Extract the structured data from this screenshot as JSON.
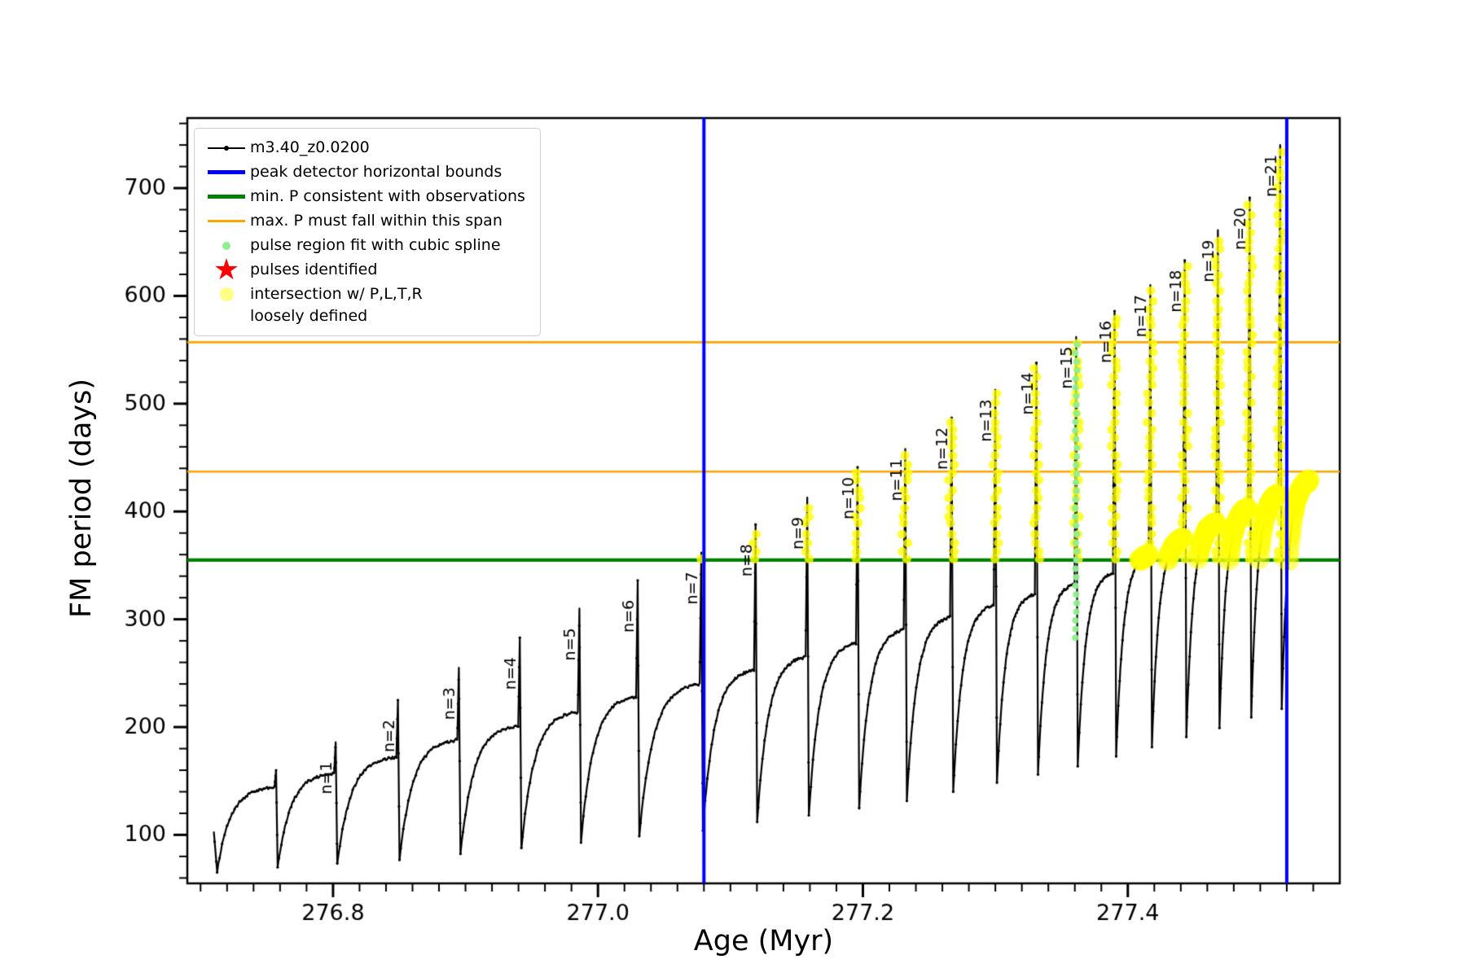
{
  "icons": {
    "pulse_star": "★"
  },
  "legend": {
    "items": [
      {
        "type": "line-marker",
        "icon": "series-line-icon",
        "color": "#000000",
        "label": "m3.40_z0.0200"
      },
      {
        "type": "thick-line",
        "icon": "blue-bound-line-icon",
        "color": "#0000ff",
        "label": "peak detector horizontal bounds"
      },
      {
        "type": "thick-line",
        "icon": "green-minP-line-icon",
        "color": "#008000",
        "label": "min. P consistent with observations"
      },
      {
        "type": "line",
        "icon": "orange-span-line-icon",
        "color": "#ffa500",
        "label": "max. P must fall within this span"
      },
      {
        "type": "dot-small",
        "icon": "spline-dot-icon",
        "color": "#90ee90",
        "label": "pulse region fit with cubic spline"
      },
      {
        "type": "star",
        "icon": "pulse-star-icon",
        "color": "#ff0000",
        "label": "pulses identified"
      },
      {
        "type": "dot-large",
        "icon": "intersection-dot-icon",
        "color": "rgba(255,255,102,0.8)",
        "label": "intersection w/ P,L,T,R\nloosely defined"
      }
    ]
  },
  "chart_data": {
    "type": "line",
    "series_name": "m3.40_z0.0200",
    "title": "",
    "xlabel": "Age (Myr)",
    "ylabel": "FM period (days)",
    "xlim": [
      276.69,
      277.56
    ],
    "ylim": [
      55,
      765
    ],
    "xticks": [
      {
        "value": 276.8,
        "label": "276.8"
      },
      {
        "value": 277.0,
        "label": "277.0"
      },
      {
        "value": 277.2,
        "label": "277.2"
      },
      {
        "value": 277.4,
        "label": "277.4"
      }
    ],
    "yticks": [
      {
        "value": 100,
        "label": "100"
      },
      {
        "value": 200,
        "label": "200"
      },
      {
        "value": 300,
        "label": "300"
      },
      {
        "value": 400,
        "label": "400"
      },
      {
        "value": 500,
        "label": "500"
      },
      {
        "value": 600,
        "label": "600"
      },
      {
        "value": 700,
        "label": "700"
      }
    ],
    "x_minor_step": 0.02,
    "y_minor_step": 20,
    "vlines": [
      {
        "x": 277.08,
        "color": "#0000ff"
      },
      {
        "x": 277.52,
        "color": "#0000ff"
      }
    ],
    "hlines": [
      {
        "y": 355,
        "color": "#008000"
      },
      {
        "y": 437,
        "color": "#ffa500"
      },
      {
        "y": 557,
        "color": "#ffa500"
      }
    ],
    "intro_points": [
      [
        276.71,
        103
      ],
      [
        276.7125,
        66
      ]
    ],
    "cycles": [
      {
        "label": null,
        "x_start": 276.7125,
        "y_start": 66,
        "x_peak": 276.757,
        "hump": 144,
        "peak": 160,
        "dip": 70
      },
      {
        "label": "n=1",
        "x_start": 276.7582,
        "y_start": 70,
        "x_peak": 276.802,
        "hump": 157,
        "peak": 186,
        "dip": 73
      },
      {
        "label": "n=2",
        "x_start": 276.8032,
        "y_start": 73,
        "x_peak": 276.849,
        "hump": 172,
        "peak": 225,
        "dip": 77
      },
      {
        "label": "n=3",
        "x_start": 276.8502,
        "y_start": 77,
        "x_peak": 276.895,
        "hump": 188,
        "peak": 255,
        "dip": 82
      },
      {
        "label": "n=4",
        "x_start": 276.8962,
        "y_start": 82,
        "x_peak": 276.941,
        "hump": 201,
        "peak": 283,
        "dip": 88
      },
      {
        "label": "n=5",
        "x_start": 276.9422,
        "y_start": 88,
        "x_peak": 276.986,
        "hump": 214,
        "peak": 310,
        "dip": 94
      },
      {
        "label": "n=6",
        "x_start": 276.9872,
        "y_start": 94,
        "x_peak": 277.03,
        "hump": 228,
        "peak": 336,
        "dip": 99
      },
      {
        "label": "n=7",
        "x_start": 277.0312,
        "y_start": 99,
        "x_peak": 277.078,
        "hump": 240,
        "peak": 362,
        "dip": 105
      },
      {
        "label": "n=8",
        "x_start": 277.0792,
        "y_start": 105,
        "x_peak": 277.119,
        "hump": 253,
        "peak": 388,
        "dip": 112
      },
      {
        "label": "n=9",
        "x_start": 277.1202,
        "y_start": 112,
        "x_peak": 277.158,
        "hump": 265,
        "peak": 413,
        "dip": 118
      },
      {
        "label": "n=10",
        "x_start": 277.1592,
        "y_start": 118,
        "x_peak": 277.196,
        "hump": 278,
        "peak": 441,
        "dip": 125
      },
      {
        "label": "n=11",
        "x_start": 277.1972,
        "y_start": 125,
        "x_peak": 277.232,
        "hump": 290,
        "peak": 458,
        "dip": 132
      },
      {
        "label": "n=12",
        "x_start": 277.2332,
        "y_start": 132,
        "x_peak": 277.267,
        "hump": 302,
        "peak": 487,
        "dip": 140
      },
      {
        "label": "n=13",
        "x_start": 277.2682,
        "y_start": 140,
        "x_peak": 277.3,
        "hump": 313,
        "peak": 513,
        "dip": 148
      },
      {
        "label": "n=14",
        "x_start": 277.3012,
        "y_start": 148,
        "x_peak": 277.331,
        "hump": 323,
        "peak": 538,
        "dip": 156
      },
      {
        "label": "n=15",
        "x_start": 277.3322,
        "y_start": 156,
        "x_peak": 277.361,
        "hump": 333,
        "peak": 562,
        "dip": 164
      },
      {
        "label": "n=16",
        "x_start": 277.3622,
        "y_start": 164,
        "x_peak": 277.39,
        "hump": 343,
        "peak": 586,
        "dip": 173
      },
      {
        "label": "n=17",
        "x_start": 277.3912,
        "y_start": 173,
        "x_peak": 277.417,
        "hump": 360,
        "peak": 610,
        "dip": 182
      },
      {
        "label": "n=18",
        "x_start": 277.4182,
        "y_start": 182,
        "x_peak": 277.443,
        "hump": 375,
        "peak": 633,
        "dip": 191
      },
      {
        "label": "n=19",
        "x_start": 277.4442,
        "y_start": 191,
        "x_peak": 277.468,
        "hump": 390,
        "peak": 661,
        "dip": 200
      },
      {
        "label": "n=20",
        "x_start": 277.4692,
        "y_start": 200,
        "x_peak": 277.492,
        "hump": 403,
        "peak": 691,
        "dip": 209
      },
      {
        "label": "n=21",
        "x_start": 277.4932,
        "y_start": 209,
        "x_peak": 277.515,
        "hump": 416,
        "peak": 740,
        "dip": 218
      },
      {
        "label": null,
        "x_start": 277.5162,
        "y_start": 218,
        "x_peak": 277.537,
        "hump": 429,
        "peak": null,
        "dip": null
      }
    ],
    "yellow_threshold": 355,
    "spline_fit": {
      "x": 277.361,
      "y_from": 283,
      "y_to": 560
    }
  }
}
